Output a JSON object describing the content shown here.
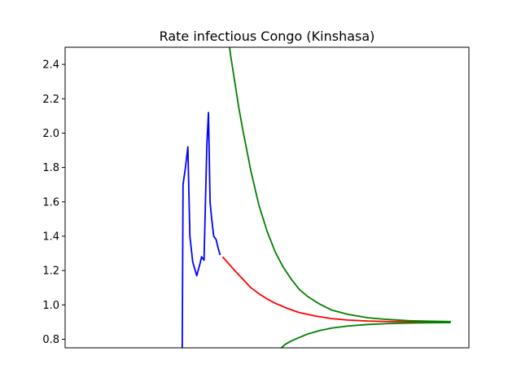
{
  "chart_data": {
    "type": "line",
    "title": "Rate infectious Congo (Kinshasa)",
    "xlabel": "",
    "ylabel": "",
    "xlim": [
      0,
      100
    ],
    "ylim": [
      0.75,
      2.5
    ],
    "yticks": [
      0.8,
      1.0,
      1.2,
      1.4,
      1.6,
      1.8,
      2.0,
      2.2,
      2.4
    ],
    "yticks_format": 1,
    "x_tick_labels_visible": false,
    "grid": false,
    "legend": "none",
    "series": [
      {
        "color": "#0000ff",
        "points": [
          [
            29.0,
            0.7
          ],
          [
            29.2,
            1.7
          ],
          [
            29.8,
            1.8
          ],
          [
            30.4,
            1.92
          ],
          [
            30.9,
            1.4
          ],
          [
            31.6,
            1.25
          ],
          [
            32.6,
            1.17
          ],
          [
            33.4,
            1.24
          ],
          [
            33.8,
            1.28
          ],
          [
            34.4,
            1.26
          ],
          [
            35.1,
            1.93
          ],
          [
            35.5,
            2.12
          ],
          [
            35.9,
            1.6
          ],
          [
            36.3,
            1.5
          ],
          [
            36.8,
            1.4
          ],
          [
            37.4,
            1.38
          ],
          [
            37.9,
            1.33
          ],
          [
            38.4,
            1.29
          ]
        ]
      },
      {
        "color": "#ff0000",
        "points": [
          [
            39.0,
            1.28
          ],
          [
            40.5,
            1.24
          ],
          [
            42.0,
            1.2
          ],
          [
            44.0,
            1.15
          ],
          [
            46.0,
            1.1
          ],
          [
            48.0,
            1.065
          ],
          [
            50.0,
            1.035
          ],
          [
            52.0,
            1.01
          ],
          [
            55.0,
            0.98
          ],
          [
            58.0,
            0.955
          ],
          [
            62.0,
            0.935
          ],
          [
            66.0,
            0.92
          ],
          [
            70.0,
            0.912
          ],
          [
            75.0,
            0.906
          ],
          [
            80.0,
            0.903
          ],
          [
            85.0,
            0.901
          ],
          [
            90.0,
            0.9
          ],
          [
            95.5,
            0.9
          ]
        ]
      },
      {
        "color": "#008000",
        "points": [
          [
            40.2,
            2.6
          ],
          [
            41.0,
            2.45
          ],
          [
            42.0,
            2.3
          ],
          [
            43.0,
            2.15
          ],
          [
            44.0,
            2.02
          ],
          [
            45.0,
            1.9
          ],
          [
            46.0,
            1.78
          ],
          [
            47.0,
            1.68
          ],
          [
            48.0,
            1.58
          ],
          [
            50.0,
            1.43
          ],
          [
            52.0,
            1.31
          ],
          [
            54.0,
            1.22
          ],
          [
            56.0,
            1.15
          ],
          [
            58.0,
            1.09
          ],
          [
            60.0,
            1.05
          ],
          [
            63.0,
            1.005
          ],
          [
            66.0,
            0.97
          ],
          [
            70.0,
            0.945
          ],
          [
            75.0,
            0.925
          ],
          [
            80.0,
            0.915
          ],
          [
            85.0,
            0.908
          ],
          [
            90.0,
            0.905
          ],
          [
            95.5,
            0.903
          ]
        ]
      },
      {
        "color": "#008000",
        "points": [
          [
            53.0,
            0.74
          ],
          [
            54.5,
            0.77
          ],
          [
            56.0,
            0.79
          ],
          [
            58.0,
            0.81
          ],
          [
            60.0,
            0.83
          ],
          [
            63.0,
            0.85
          ],
          [
            66.0,
            0.865
          ],
          [
            70.0,
            0.877
          ],
          [
            75.0,
            0.886
          ],
          [
            80.0,
            0.891
          ],
          [
            85.0,
            0.894
          ],
          [
            90.0,
            0.896
          ],
          [
            95.5,
            0.897
          ]
        ]
      }
    ]
  }
}
